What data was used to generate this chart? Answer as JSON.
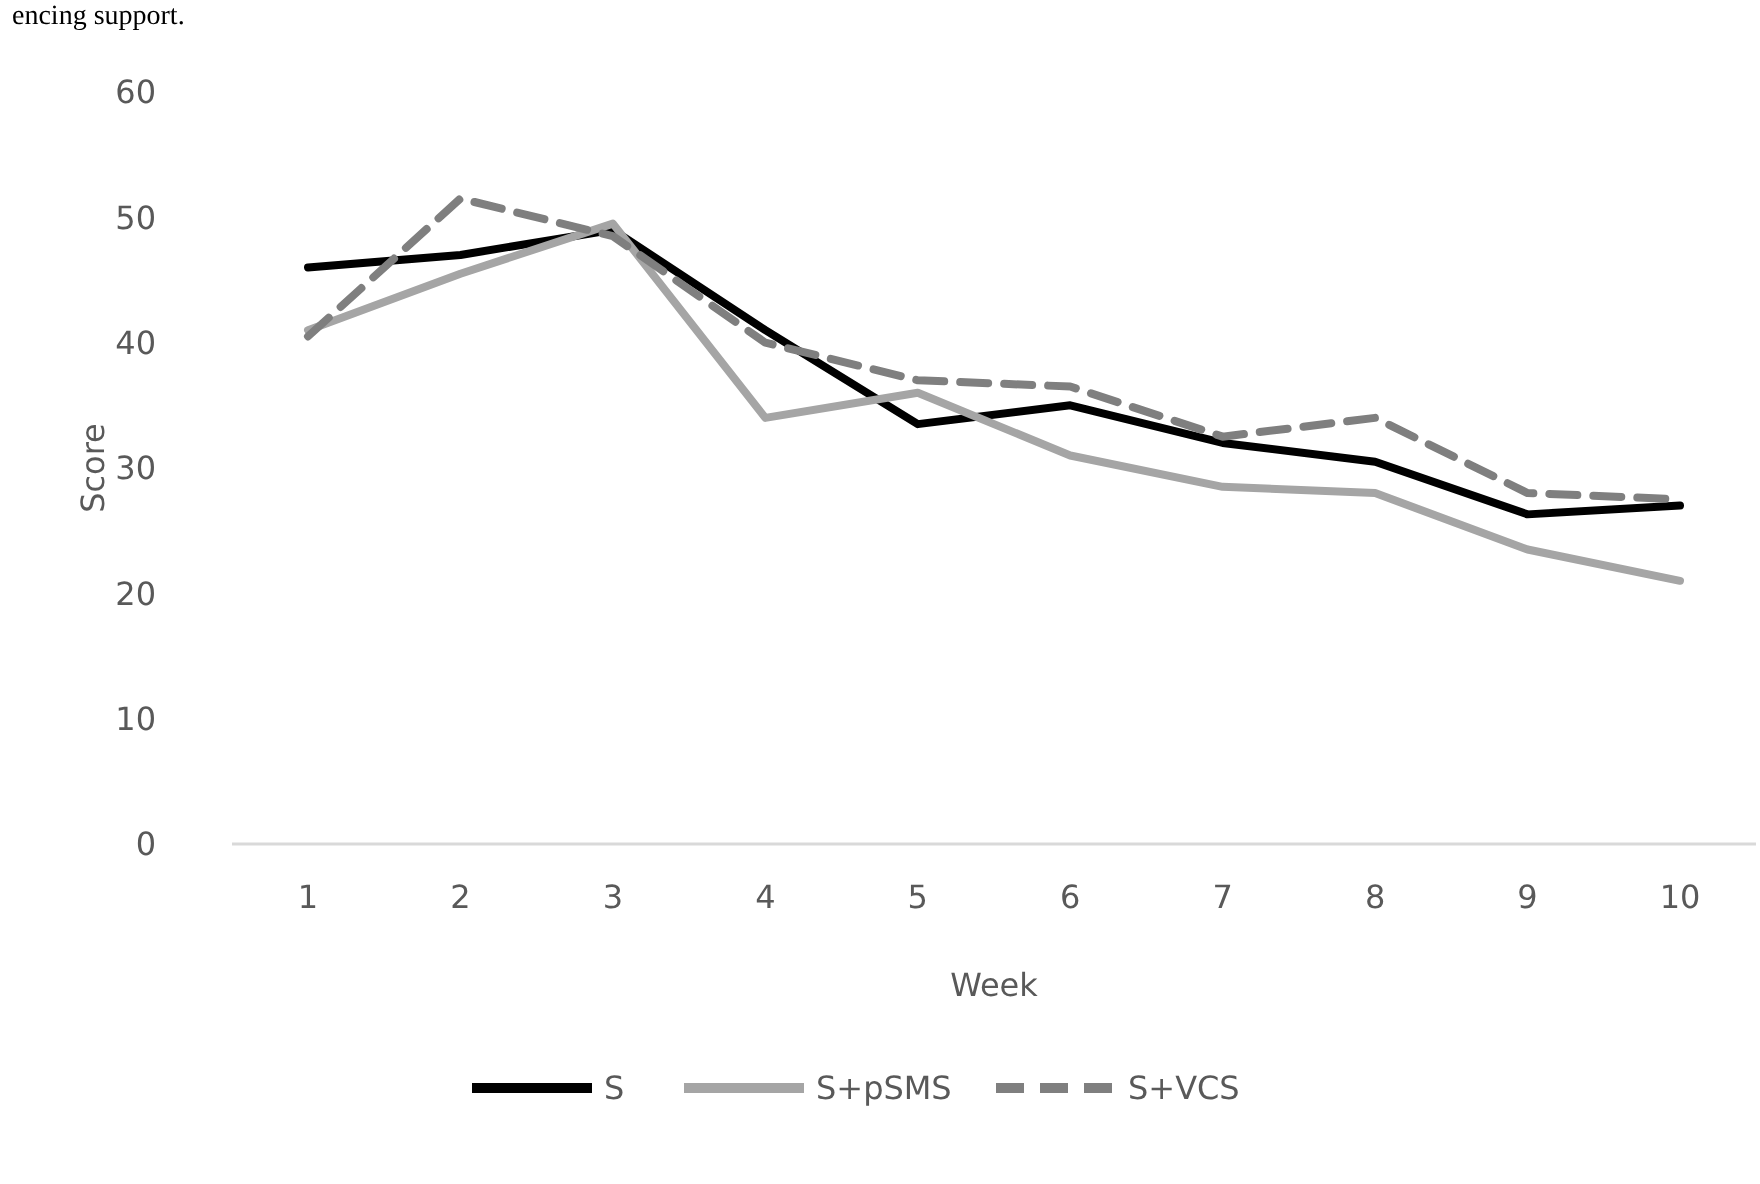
{
  "chart_data": {
    "type": "line",
    "xlabel": "Week",
    "ylabel": "Score",
    "annotations": [
      "encing support."
    ],
    "categories": [
      "1",
      "2",
      "3",
      "4",
      "5",
      "6",
      "7",
      "8",
      "9",
      "10"
    ],
    "ylim": [
      0,
      60
    ],
    "yticks": [
      0,
      10,
      20,
      30,
      40,
      50,
      60
    ],
    "grid": false,
    "legend": "bottom",
    "series": [
      {
        "name": "S",
        "color": "#000000",
        "line_style": "solid",
        "values": [
          46,
          47,
          49,
          41,
          33.5,
          35,
          32,
          30.5,
          26.3,
          27
        ]
      },
      {
        "name": "S+pSMS",
        "color": "#a5a5a5",
        "line_style": "solid",
        "values": [
          41,
          45.5,
          49.5,
          34,
          36,
          31,
          28.5,
          28,
          23.5,
          21
        ]
      },
      {
        "name": "S+VCS",
        "color": "#7f7f7f",
        "line_style": "dashed",
        "values": [
          40.5,
          51.5,
          48.5,
          40,
          37,
          36.5,
          32.5,
          34,
          28,
          27.5
        ]
      }
    ]
  }
}
